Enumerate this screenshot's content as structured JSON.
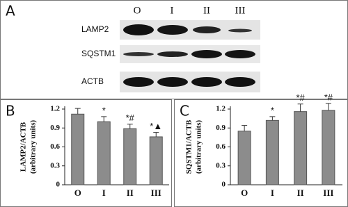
{
  "blot": {
    "label": "A",
    "lanes": [
      "O",
      "I",
      "II",
      "III"
    ],
    "rows": [
      "LAMP2",
      "SQSTM1",
      "ACTB"
    ]
  },
  "chart_data": [
    {
      "type": "bar",
      "label": "B",
      "y_label": "LAMP2/ACTB",
      "y_label_sub": "(arbitrary units)",
      "categories": [
        "O",
        "I",
        "II",
        "III"
      ],
      "values": [
        1.12,
        1.0,
        0.89,
        0.76
      ],
      "errors": [
        0.09,
        0.08,
        0.07,
        0.07
      ],
      "annotations": [
        null,
        "*",
        "*#",
        "*▲"
      ],
      "color": "#8c8c8c",
      "ylim": [
        0,
        1.2
      ],
      "yticks": [
        0,
        0.3,
        0.6,
        0.9,
        1.2
      ]
    },
    {
      "type": "bar",
      "label": "C",
      "y_label": "SQSTM1/ACTB",
      "y_label_sub": "(arbitrary units)",
      "categories": [
        "O",
        "I",
        "II",
        "III"
      ],
      "values": [
        0.85,
        1.02,
        1.16,
        1.18
      ],
      "errors": [
        0.09,
        0.06,
        0.12,
        0.11
      ],
      "annotations": [
        null,
        "*",
        "*#",
        "*#"
      ],
      "color": "#8c8c8c",
      "ylim": [
        0,
        1.2
      ],
      "yticks": [
        0,
        0.3,
        0.6,
        0.9,
        1.2
      ]
    }
  ]
}
